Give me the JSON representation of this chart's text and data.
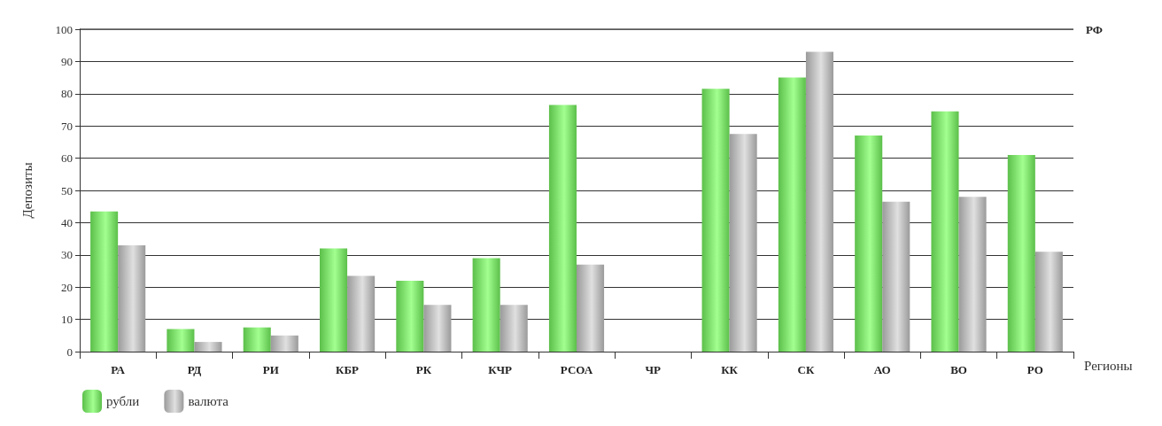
{
  "chart_data": {
    "type": "bar",
    "ylabel": "Депозиты",
    "xlabel": "Регионы",
    "categories": [
      "РА",
      "РД",
      "РИ",
      "КБР",
      "РК",
      "КЧР",
      "РСОА",
      "ЧР",
      "КК",
      "СК",
      "АО",
      "ВО",
      "РО"
    ],
    "series": [
      {
        "name": "рубли",
        "color": "#5cbf4a",
        "values": [
          43.5,
          7,
          7.5,
          32,
          22,
          29,
          76.5,
          null,
          81.5,
          85,
          67,
          74.5,
          61
        ]
      },
      {
        "name": "валюта",
        "color": "#9a9a9a",
        "values": [
          33,
          3,
          5,
          23.5,
          14.5,
          14.5,
          27,
          null,
          67.5,
          93,
          46.5,
          48,
          31
        ]
      }
    ],
    "ylim": [
      0,
      100
    ],
    "yticks": [
      0,
      10,
      20,
      30,
      40,
      50,
      60,
      70,
      80,
      90,
      100
    ],
    "grid": "y",
    "legend": "bottom left",
    "ref_lines": [
      {
        "axis": "y",
        "value": 100,
        "label": "РФ"
      }
    ]
  }
}
